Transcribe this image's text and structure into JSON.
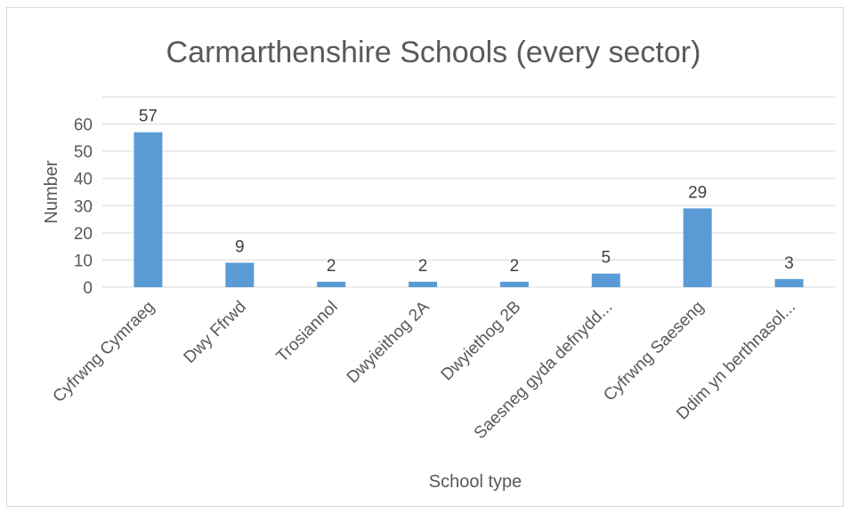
{
  "chart_data": {
    "type": "bar",
    "title": "Carmarthenshire Schools (every sector)",
    "xlabel": "School type",
    "ylabel": "Number",
    "categories": [
      "Cyfrwng Cymraeg",
      "Dwy Ffrwd",
      "Trosiannol",
      "Dwyieithog 2A",
      "Dwyiethog 2B",
      "Saesneg gyda defnydd...",
      "Cyfrwng Saeseng",
      "Ddim yn berthnasol..."
    ],
    "values": [
      57,
      9,
      2,
      2,
      2,
      5,
      29,
      3
    ],
    "yticks": [
      "0",
      "10",
      "20",
      "30",
      "40",
      "50",
      "60"
    ],
    "ylim": [
      0,
      70
    ],
    "grid": true,
    "legend": "none",
    "bar_color": "#5b9bd5"
  }
}
